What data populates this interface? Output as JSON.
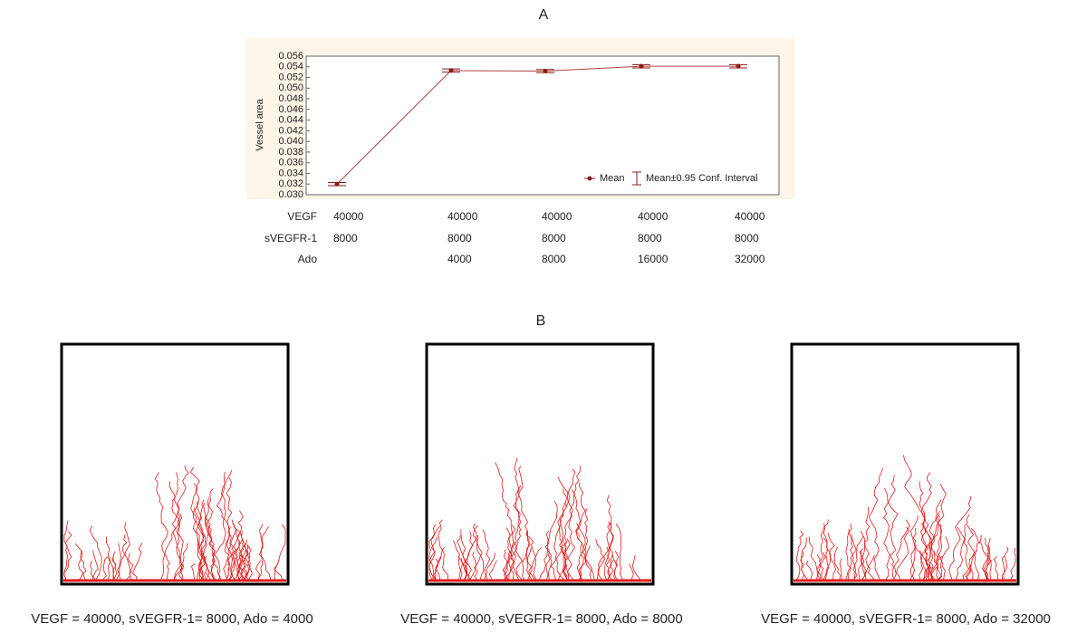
{
  "panel_a_label": "A",
  "chart_data": {
    "type": "line",
    "y_label": "Vessel area",
    "ylim": [
      0.03,
      0.056
    ],
    "yticks": [
      {
        "value": 0.03,
        "label": "0.030"
      },
      0.032,
      0.034,
      0.036,
      0.038,
      {
        "value": 0.04,
        "label": "0.040"
      },
      0.042,
      0.044,
      0.046,
      0.048,
      {
        "value": 0.05,
        "label": "0.050"
      },
      0.052,
      0.054,
      0.056
    ],
    "series": [
      {
        "name": "Mean",
        "color": "#8b1a1a",
        "values": [
          0.032,
          0.0533,
          0.0532,
          0.0541,
          0.0541
        ],
        "errors": [
          0.0003,
          0.0003,
          0.0003,
          0.0003,
          0.0003
        ],
        "error_name": "Mean±0.95 Conf. Interval"
      }
    ],
    "x_table": {
      "row_labels": [
        "VEGF",
        "sVEGFR-1",
        "Ado"
      ],
      "rows": [
        [
          40000,
          40000,
          40000,
          40000,
          40000
        ],
        [
          8000,
          8000,
          8000,
          8000,
          8000
        ],
        [
          null,
          4000,
          8000,
          16000,
          32000
        ]
      ]
    }
  },
  "panel_b_label": "B",
  "captions": [
    "VEGF = 40000, sVEGFR-1= 8000, Ado = 4000",
    "VEGF = 40000, sVEGFR-1= 8000, Ado = 8000",
    "VEGF = 40000, sVEGFR-1= 8000, Ado = 32000"
  ]
}
